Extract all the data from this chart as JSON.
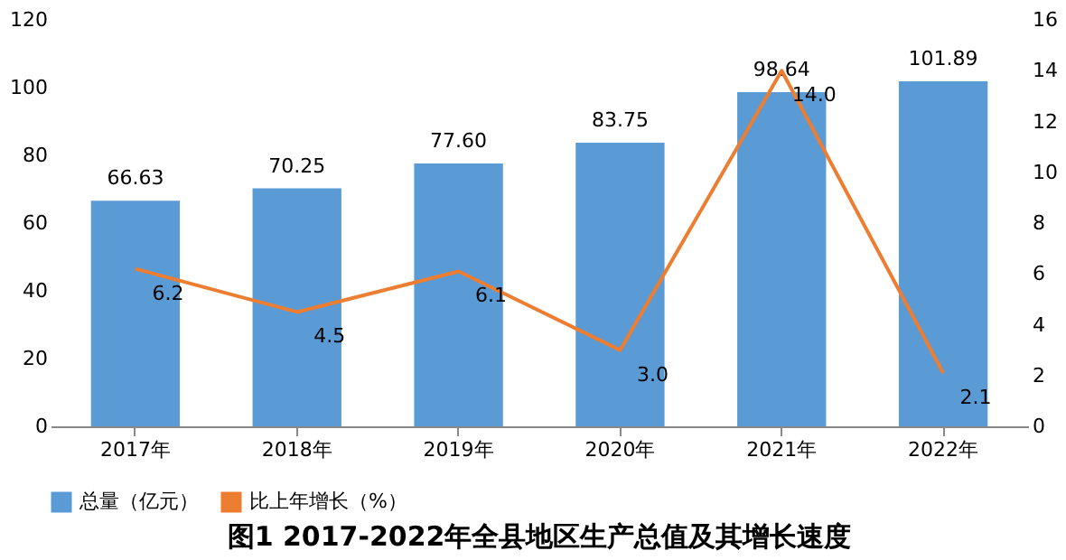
{
  "chart_data": {
    "type": "bar",
    "title": "图1 2017-2022年全县地区生产总值及其增长速度",
    "categories": [
      "2017年",
      "2018年",
      "2019年",
      "2020年",
      "2021年",
      "2022年"
    ],
    "series": [
      {
        "name": "总量（亿元）",
        "color": "#5b9bd5",
        "values": [
          66.63,
          70.25,
          77.6,
          83.75,
          98.64,
          101.89
        ],
        "value_labels": [
          "66.63",
          "70.25",
          "77.60",
          "83.75",
          "98.64",
          "101.89"
        ]
      },
      {
        "name": "比上年增长（%）",
        "type": "line",
        "axis": "y2",
        "color": "#ed7d31",
        "values": [
          6.2,
          4.5,
          6.1,
          3.0,
          14.0,
          2.1
        ],
        "value_labels": [
          "6.2",
          "4.5",
          "6.1",
          "3.0",
          "14.0",
          "2.1"
        ]
      }
    ],
    "ylim": [
      0,
      120
    ],
    "yticks": [
      0,
      20,
      40,
      60,
      80,
      100,
      120
    ],
    "y2lim": [
      0,
      16
    ],
    "y2ticks": [
      0,
      2,
      4,
      6,
      8,
      10,
      12,
      14,
      16
    ],
    "grid": false,
    "legend": "bottom",
    "marker": "none",
    "line_style": "solid"
  }
}
